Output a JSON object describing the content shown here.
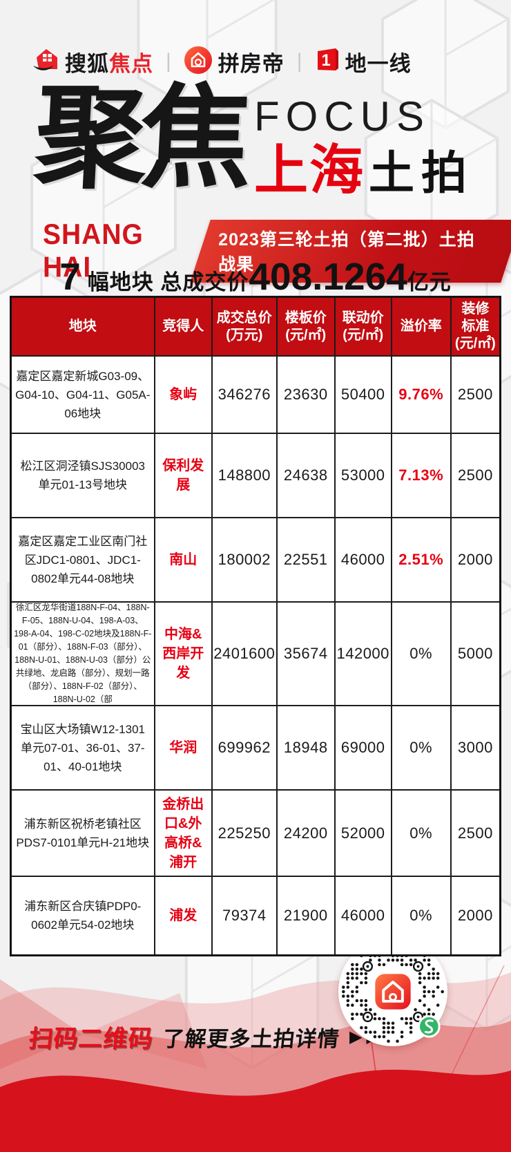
{
  "colors": {
    "background": "#f2f2f3",
    "brand_red": "#d6121c",
    "table_header_red": "#c20d12",
    "premium_red": "#e60012",
    "text_black": "#1a1a1a",
    "qr_green": "#35b567"
  },
  "logo_bar": {
    "divider": "|",
    "sohu": {
      "black": "搜狐",
      "red": "焦点"
    },
    "pinfangdi": {
      "text": "拼房帝"
    },
    "diyixian": {
      "text": "地一线"
    }
  },
  "title": {
    "cn_main": "聚焦",
    "en": "FOCUS",
    "city_red": "上海",
    "topic_black": "土拍"
  },
  "banner": {
    "left": "SHANG HAI",
    "right": "2023第三轮土拍（第二批）土拍战果"
  },
  "summary": {
    "count": "7",
    "label": "幅地块 总成交价",
    "amount": "408.1264",
    "unit": "亿元"
  },
  "table": {
    "headers": [
      {
        "l1": "地块",
        "l2": ""
      },
      {
        "l1": "竞得人",
        "l2": ""
      },
      {
        "l1": "成交总价",
        "l2": "(万元)"
      },
      {
        "l1": "楼板价",
        "l2": "(元/㎡)"
      },
      {
        "l1": "联动价",
        "l2": "(元/㎡)"
      },
      {
        "l1": "溢价率",
        "l2": ""
      },
      {
        "l1": "装修标准",
        "l2": "(元/㎡)"
      }
    ],
    "rows": [
      {
        "plot": "嘉定区嘉定新城G03-09、G04-10、G04-11、G05A-06地块",
        "winner": "象屿",
        "total_price": "346276",
        "floor_price": "23630",
        "linkage_price": "50400",
        "premium": "9.76%",
        "premium_color": "#e60012",
        "premium_weight": "700",
        "decoration": "2500"
      },
      {
        "plot": "松江区洞泾镇SJS30003单元01-13号地块",
        "winner": "保利发展",
        "total_price": "148800",
        "floor_price": "24638",
        "linkage_price": "53000",
        "premium": "7.13%",
        "premium_color": "#e60012",
        "premium_weight": "700",
        "decoration": "2500"
      },
      {
        "plot": "嘉定区嘉定工业区南门社区JDC1-0801、JDC1-0802单元44-08地块",
        "winner": "南山",
        "total_price": "180002",
        "floor_price": "22551",
        "linkage_price": "46000",
        "premium": "2.51%",
        "premium_color": "#e60012",
        "premium_weight": "700",
        "decoration": "2000"
      },
      {
        "plot": "徐汇区龙华街道188N-F-04、188N-F-05、188N-U-04、198-A-03、198-A-04、198-C-02地块及188N-F-01（部分）、188N-F-03（部分）、188N-U-01、188N-U-03（部分）公共绿地、龙启路（部分）、规划一路（部分）、188N-F-02（部分）、188N-U-02（部",
        "winner": "中海&西岸开发",
        "total_price": "2401600",
        "floor_price": "35674",
        "linkage_price": "142000",
        "premium": "0%",
        "premium_color": "#1a1a1a",
        "premium_weight": "400",
        "decoration": "5000"
      },
      {
        "plot": "宝山区大场镇W12-1301单元07-01、36-01、37-01、40-01地块",
        "winner": "华润",
        "total_price": "699962",
        "floor_price": "18948",
        "linkage_price": "69000",
        "premium": "0%",
        "premium_color": "#1a1a1a",
        "premium_weight": "400",
        "decoration": "3000"
      },
      {
        "plot": "浦东新区祝桥老镇社区PDS7-0101单元H-21地块",
        "winner": "金桥出口&外高桥&浦开",
        "total_price": "225250",
        "floor_price": "24200",
        "linkage_price": "52000",
        "premium": "0%",
        "premium_color": "#1a1a1a",
        "premium_weight": "400",
        "decoration": "2500"
      },
      {
        "plot": "浦东新区合庆镇PDP0-0602单元54-02地块",
        "winner": "浦发",
        "total_price": "79374",
        "floor_price": "21900",
        "linkage_price": "46000",
        "premium": "0%",
        "premium_color": "#1a1a1a",
        "premium_weight": "400",
        "decoration": "2000"
      }
    ]
  },
  "footer": {
    "scan": "扫码二维码",
    "more": "了解更多土拍详情",
    "arrows": "▶▶▶"
  }
}
